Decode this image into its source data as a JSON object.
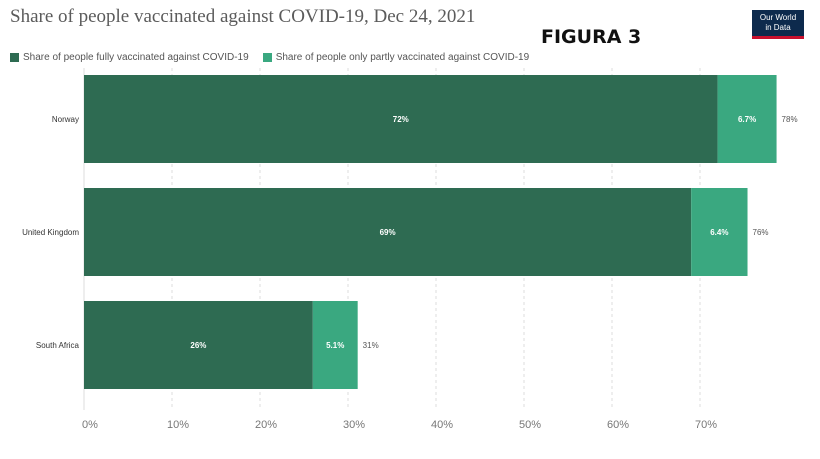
{
  "title": "Share of people vaccinated against COVID-19, Dec 24, 2021",
  "figure_label": "FIGURA 3",
  "logo": {
    "line1": "Our World",
    "line2": "in Data"
  },
  "colors": {
    "fully": "#2e6b52",
    "partly": "#3aa880",
    "grid": "#dddddd",
    "axis_text": "#777777"
  },
  "chart_data": {
    "type": "bar",
    "orientation": "horizontal",
    "stacked": true,
    "title": "Share of people vaccinated against COVID-19, Dec 24, 2021",
    "categories": [
      "Norway",
      "United Kingdom",
      "South Africa"
    ],
    "series": [
      {
        "name": "Share of people fully vaccinated against COVID-19",
        "values": [
          72,
          69,
          26
        ],
        "labels": [
          "72%",
          "69%",
          "26%"
        ]
      },
      {
        "name": "Share of people only partly vaccinated against COVID-19",
        "values": [
          6.7,
          6.4,
          5.1
        ],
        "labels": [
          "6.7%",
          "6.4%",
          "5.1%"
        ]
      }
    ],
    "totals": [
      "78%",
      "76%",
      "31%"
    ],
    "xlim": [
      0,
      80
    ],
    "xticks": [
      "0%",
      "10%",
      "20%",
      "30%",
      "40%",
      "50%",
      "60%",
      "70%"
    ],
    "grid": true,
    "legend": "top-left"
  }
}
